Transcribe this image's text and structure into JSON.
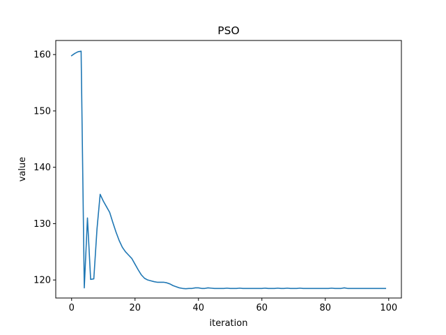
{
  "chart_data": {
    "type": "line",
    "title": "PSO",
    "xlabel": "iteration",
    "ylabel": "value",
    "xlim": [
      -5,
      104
    ],
    "ylim": [
      116.8,
      162.5
    ],
    "xticks": [
      0,
      20,
      40,
      60,
      80,
      100
    ],
    "yticks": [
      120,
      130,
      140,
      150,
      160
    ],
    "grid": false,
    "line_color": "#1f77b4",
    "series": [
      {
        "x": [
          0,
          1,
          2,
          3,
          4,
          5,
          6,
          7,
          8,
          9,
          10,
          11,
          12,
          13,
          14,
          15,
          16,
          17,
          18,
          19,
          20,
          21,
          22,
          23,
          24,
          25,
          26,
          27,
          28,
          29,
          30,
          31,
          32,
          33,
          34,
          35,
          36,
          37,
          38,
          39,
          40,
          41,
          42,
          43,
          44,
          45,
          46,
          47,
          48,
          49,
          50,
          51,
          52,
          53,
          54,
          55,
          56,
          57,
          58,
          59,
          60,
          61,
          62,
          63,
          64,
          65,
          66,
          67,
          68,
          69,
          70,
          71,
          72,
          73,
          74,
          75,
          76,
          77,
          78,
          79,
          80,
          81,
          82,
          83,
          84,
          85,
          86,
          87,
          88,
          89,
          90,
          91,
          92,
          93,
          94,
          95,
          96,
          97,
          98,
          99
        ],
        "values": [
          159.8,
          160.2,
          160.5,
          160.6,
          118.6,
          131.0,
          120.1,
          120.2,
          129.0,
          135.2,
          134.0,
          133.0,
          132.0,
          130.2,
          128.5,
          127.0,
          125.8,
          125.0,
          124.4,
          123.8,
          122.8,
          121.8,
          120.9,
          120.3,
          120.0,
          119.85,
          119.7,
          119.6,
          119.6,
          119.6,
          119.5,
          119.3,
          119.0,
          118.8,
          118.6,
          118.5,
          118.45,
          118.5,
          118.5,
          118.6,
          118.6,
          118.5,
          118.5,
          118.6,
          118.55,
          118.5,
          118.5,
          118.5,
          118.5,
          118.55,
          118.5,
          118.5,
          118.5,
          118.55,
          118.5,
          118.5,
          118.5,
          118.5,
          118.5,
          118.5,
          118.5,
          118.55,
          118.5,
          118.5,
          118.5,
          118.55,
          118.5,
          118.5,
          118.55,
          118.5,
          118.5,
          118.5,
          118.55,
          118.5,
          118.5,
          118.5,
          118.5,
          118.5,
          118.5,
          118.5,
          118.5,
          118.5,
          118.55,
          118.5,
          118.5,
          118.5,
          118.6,
          118.5,
          118.5,
          118.5,
          118.5,
          118.5,
          118.5,
          118.5,
          118.5,
          118.5,
          118.5,
          118.5,
          118.5,
          118.5
        ]
      }
    ]
  }
}
